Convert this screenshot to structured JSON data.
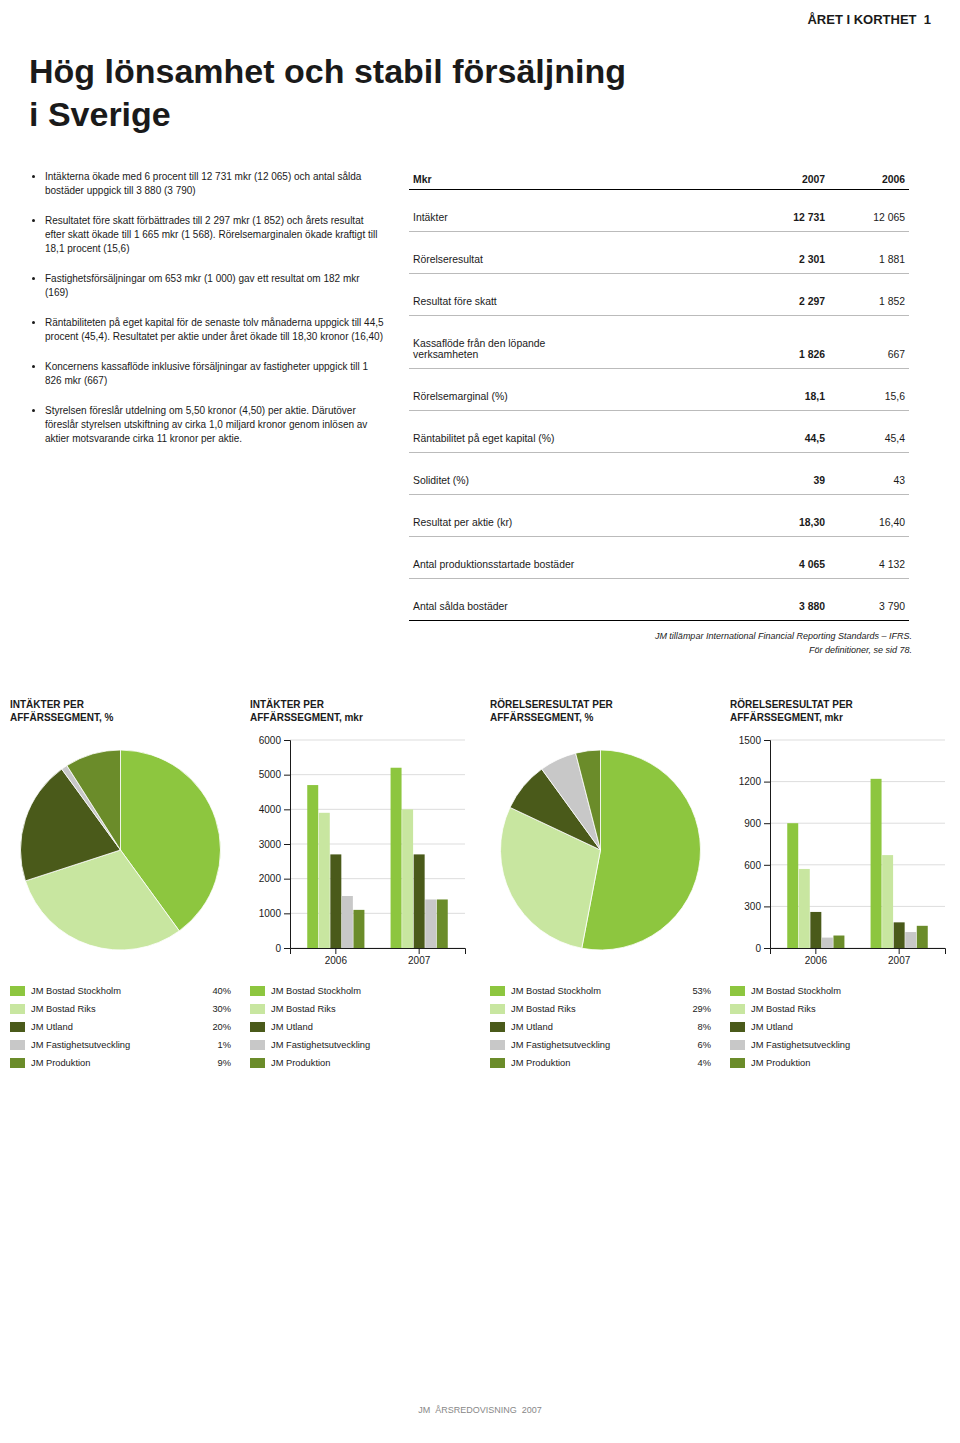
{
  "page_header": "ÅRET I KORTHET  1",
  "title": "Hög lönsamhet och stabil försäljning\ni Sverige",
  "bullets": [
    "Intäkterna ökade med 6 procent till 12 731 mkr (12 065) och antal sålda bostäder uppgick till 3 880 (3 790)",
    "Resultatet före skatt förbättrades till 2 297 mkr (1 852) och årets resultat efter skatt ökade till 1 665 mkr (1 568). Rörelsemarginalen ökade kraftigt till 18,1 procent (15,6)",
    "Fastighetsförsäljningar om 653 mkr (1 000) gav ett resultat om 182 mkr (169)",
    "Räntabiliteten på eget kapital för de senaste tolv månaderna uppgick till 44,5 procent (45,4). Resultatet per aktie under året ökade till 18,30 kronor (16,40)",
    "Koncernens kassaflöde inklusive försäljningar av fastigheter uppgick till 1 826 mkr (667)",
    "Styrelsen föreslår utdelning om 5,50 kronor (4,50) per aktie. Därutöver föreslår styrelsen utskiftning av cirka 1,0 miljard kronor genom inlösen av aktier motsvarande cirka 11 kronor per aktie."
  ],
  "table": {
    "header": [
      "Mkr",
      "2007",
      "2006"
    ],
    "rows": [
      [
        "Intäkter",
        "12 731",
        "12 065"
      ],
      [
        "Rörelseresultat",
        "2 301",
        "1 881"
      ],
      [
        "Resultat före skatt",
        "2 297",
        "1 852"
      ],
      [
        "Kassaflöde från den löpande\nverksamheten",
        "1 826",
        "667"
      ],
      [
        "Rörelsemarginal (%)",
        "18,1",
        "15,6"
      ],
      [
        "Räntabilitet på eget kapital (%)",
        "44,5",
        "45,4"
      ],
      [
        "Soliditet (%)",
        "39",
        "43"
      ],
      [
        "Resultat per aktie (kr)",
        "18,30",
        "16,40"
      ],
      [
        "Antal produktionsstartade bostäder",
        "4 065",
        "4 132"
      ],
      [
        "Antal sålda bostäder",
        "3 880",
        "3 790"
      ]
    ]
  },
  "note": [
    "JM tillämpar International Financial Reporting Standards – IFRS.",
    "För definitioner, se sid 78."
  ],
  "footer": "JM  ÅRSREDOVISNING  2007",
  "chart_data": [
    {
      "type": "pie",
      "title": "INTÄKTER PER\nAFFÄRSSEGMENT, %",
      "categories": [
        "JM Bostad Stockholm",
        "JM Bostad Riks",
        "JM Utland",
        "JM Fastighetsutveckling",
        "JM Produktion"
      ],
      "values": [
        40,
        30,
        20,
        1,
        9
      ],
      "value_labels": [
        "40%",
        "30%",
        "20%",
        "1%",
        "9%"
      ],
      "colors": [
        "#8dc63f",
        "#c8e6a0",
        "#4a5a1a",
        "#c8c8c8",
        "#6b8c2a"
      ],
      "legend": "bottom"
    },
    {
      "type": "bar",
      "title": "INTÄKTER PER\nAFFÄRSSEGMENT, mkr",
      "categories": [
        "2006",
        "2007"
      ],
      "series": [
        {
          "name": "JM Bostad Stockholm",
          "color": "#8dc63f",
          "values": [
            4700,
            5200
          ]
        },
        {
          "name": "JM Bostad Riks",
          "color": "#c8e6a0",
          "values": [
            3900,
            4000
          ]
        },
        {
          "name": "JM Utland",
          "color": "#4a5a1a",
          "values": [
            2700,
            2700
          ]
        },
        {
          "name": "JM Fastighetsutveckling",
          "color": "#c8c8c8",
          "values": [
            1500,
            1400
          ]
        },
        {
          "name": "JM Produktion",
          "color": "#6b8c2a",
          "values": [
            1100,
            1400
          ]
        }
      ],
      "ylim": [
        0,
        6000
      ],
      "yticks": [
        0,
        1000,
        2000,
        3000,
        4000,
        5000,
        6000
      ],
      "grid": true,
      "legend": "bottom"
    },
    {
      "type": "pie",
      "title": "RÖRELSERESULTAT PER\nAFFÄRSSEGMENT, %",
      "categories": [
        "JM Bostad Stockholm",
        "JM Bostad Riks",
        "JM Utland",
        "JM Fastighetsutveckling",
        "JM Produktion"
      ],
      "values": [
        53,
        29,
        8,
        6,
        4
      ],
      "value_labels": [
        "53%",
        "29%",
        "8%",
        "6%",
        "4%"
      ],
      "colors": [
        "#8dc63f",
        "#c8e6a0",
        "#4a5a1a",
        "#c8c8c8",
        "#6b8c2a"
      ],
      "legend": "bottom"
    },
    {
      "type": "bar",
      "title": "RÖRELSERESULTAT PER\nAFFÄRSSEGMENT, mkr",
      "categories": [
        "2006",
        "2007"
      ],
      "series": [
        {
          "name": "JM Bostad Stockholm",
          "color": "#8dc63f",
          "values": [
            900,
            1220
          ]
        },
        {
          "name": "JM Bostad Riks",
          "color": "#c8e6a0",
          "values": [
            570,
            670
          ]
        },
        {
          "name": "JM Utland",
          "color": "#4a5a1a",
          "values": [
            260,
            185
          ]
        },
        {
          "name": "JM Fastighetsutveckling",
          "color": "#c8c8c8",
          "values": [
            75,
            115
          ]
        },
        {
          "name": "JM Produktion",
          "color": "#6b8c2a",
          "values": [
            90,
            160
          ]
        }
      ],
      "ylim": [
        0,
        1500
      ],
      "yticks": [
        0,
        300,
        600,
        900,
        1200,
        1500
      ],
      "grid": true,
      "legend": "bottom"
    }
  ]
}
